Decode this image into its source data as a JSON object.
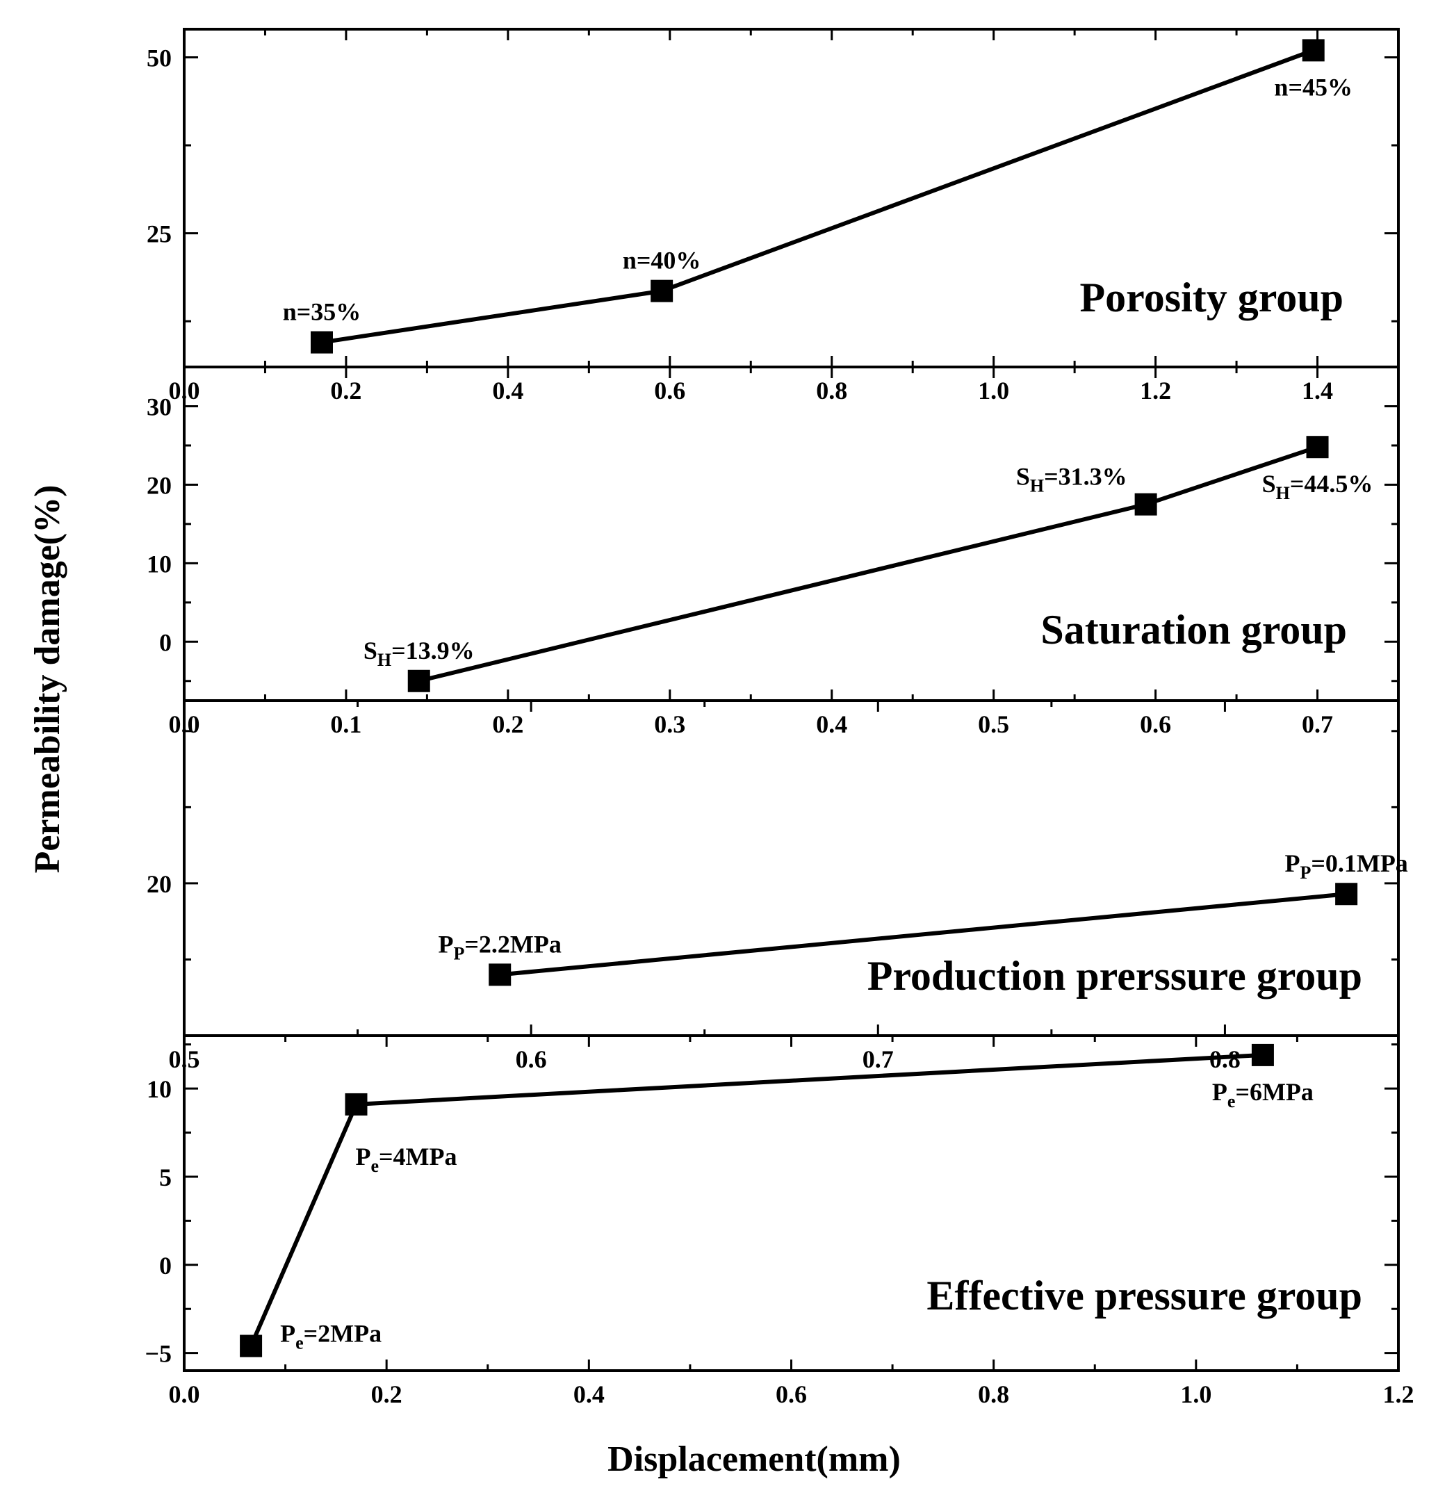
{
  "chart_data": {
    "type": "line",
    "xlabel": "Displacement(mm)",
    "ylabel": "Permeability damage(%)",
    "panels": [
      {
        "name": "porosity",
        "group_label": "Porosity group",
        "xlim": [
          0.0,
          1.5
        ],
        "xticks": [
          0.0,
          0.2,
          0.4,
          0.6,
          0.8,
          1.0,
          1.2,
          1.4
        ],
        "xtick_labels": [
          "0.0",
          "0.2",
          "0.4",
          "0.6",
          "0.8",
          "1.0",
          "1.2",
          "1.4"
        ],
        "ylim": [
          6,
          54
        ],
        "yticks": [
          25,
          50
        ],
        "ytick_labels": [
          "25",
          "50"
        ],
        "points": [
          {
            "x": 0.17,
            "y": 9.5,
            "label": "n=35%",
            "label_pos": "above"
          },
          {
            "x": 0.59,
            "y": 16.8,
            "label": "n=40%",
            "label_pos": "above"
          },
          {
            "x": 1.395,
            "y": 51.0,
            "label": "n=45%",
            "label_pos": "below"
          }
        ]
      },
      {
        "name": "saturation",
        "group_label": "Saturation group",
        "xlim": [
          0.0,
          0.75
        ],
        "xticks": [
          0.0,
          0.1,
          0.2,
          0.3,
          0.4,
          0.5,
          0.6,
          0.7
        ],
        "xtick_labels": [
          "0.0",
          "0.1",
          "0.2",
          "0.3",
          "0.4",
          "0.5",
          "0.6",
          "0.7"
        ],
        "ylim": [
          -7.5,
          35
        ],
        "yticks": [
          0,
          10,
          20,
          30
        ],
        "ytick_labels": [
          "0",
          "10",
          "20",
          "30"
        ],
        "points": [
          {
            "x": 0.145,
            "y": -5.0,
            "label_main": "S",
            "label_sub": "H",
            "label_rest": "=13.9%",
            "label_pos": "above"
          },
          {
            "x": 0.594,
            "y": 17.5,
            "label_main": "S",
            "label_sub": "H",
            "label_rest": "=31.3%",
            "label_pos": "above-left"
          },
          {
            "x": 0.7,
            "y": 24.8,
            "label_main": "S",
            "label_sub": "H",
            "label_rest": "=44.5%",
            "label_pos": "below"
          }
        ]
      },
      {
        "name": "production",
        "group_label": "Production prerssure group",
        "xlim": [
          0.5,
          0.85
        ],
        "xticks": [
          0.5,
          0.6,
          0.7,
          0.8
        ],
        "xtick_labels": [
          "0.5",
          "0.6",
          "0.7",
          "0.8"
        ],
        "ylim": [
          10,
          32
        ],
        "yticks": [
          20
        ],
        "ytick_labels": [
          "20"
        ],
        "points": [
          {
            "x": 0.591,
            "y": 14.0,
            "label_main": "P",
            "label_sub": "P",
            "label_rest": "=2.2MPa",
            "label_pos": "above"
          },
          {
            "x": 0.835,
            "y": 19.3,
            "label_main": "P",
            "label_sub": "P",
            "label_rest": "=0.1MPa",
            "label_pos": "above"
          }
        ]
      },
      {
        "name": "effective",
        "group_label": "Effective pressure group",
        "xlim": [
          0.0,
          1.2
        ],
        "xticks": [
          0.0,
          0.2,
          0.4,
          0.6,
          0.8,
          1.0,
          1.2
        ],
        "xtick_labels": [
          "0.0",
          "0.2",
          "0.4",
          "0.6",
          "0.8",
          "1.0",
          "1.2"
        ],
        "ylim": [
          -6,
          13
        ],
        "yticks": [
          -5,
          0,
          5,
          10
        ],
        "ytick_labels": [
          "−5",
          "0",
          "5",
          "10"
        ],
        "points": [
          {
            "x": 0.066,
            "y": -4.6,
            "label_main": "P",
            "label_sub": "e",
            "label_rest": "=2MPa",
            "label_pos": "right"
          },
          {
            "x": 0.17,
            "y": 9.1,
            "label_main": "P",
            "label_sub": "e",
            "label_rest": "=4MPa",
            "label_pos": "below-right"
          },
          {
            "x": 1.066,
            "y": 11.9,
            "label_main": "P",
            "label_sub": "e",
            "label_rest": "=6MPa",
            "label_pos": "below"
          }
        ]
      }
    ]
  }
}
